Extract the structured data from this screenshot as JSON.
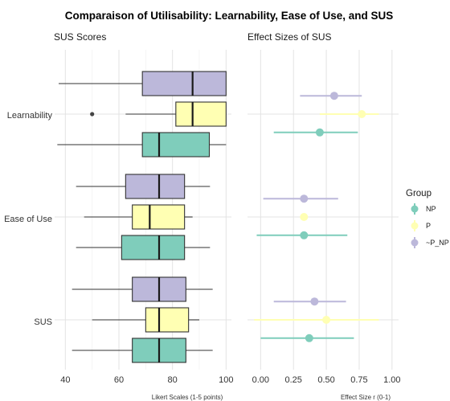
{
  "title": "Comparaison of Utilisability: Learnability, Ease of Use, and SUS",
  "colors": {
    "NP": "#7fcdbb",
    "P": "#ffffb3",
    "~P_NP": "#bcb8da",
    "grid": "#e3e3e3",
    "whisker": "#333333"
  },
  "chart_data": [
    {
      "type": "box",
      "title": "SUS Scores",
      "xlabel": "Likert Scales (1-5 points)",
      "xlim": [
        36,
        102
      ],
      "xticks": [
        40,
        60,
        80,
        100
      ],
      "categories": [
        "Learnability",
        "Ease of Use",
        "SUS"
      ],
      "series": [
        {
          "name": "NP",
          "boxes": [
            {
              "min": 37,
              "q1": 68.75,
              "median": 75,
              "q3": 93.75,
              "max": 100,
              "outliers": []
            },
            {
              "min": 44,
              "q1": 61,
              "median": 75,
              "q3": 84.5,
              "max": 94,
              "outliers": []
            },
            {
              "min": 42.5,
              "q1": 65,
              "median": 75,
              "q3": 85,
              "max": 95,
              "outliers": []
            }
          ]
        },
        {
          "name": "P",
          "boxes": [
            {
              "min": 62.5,
              "q1": 81.25,
              "median": 87.5,
              "q3": 100,
              "max": 100,
              "outliers": [
                50
              ]
            },
            {
              "min": 47,
              "q1": 65,
              "median": 71.5,
              "q3": 84.5,
              "max": 87.5,
              "outliers": []
            },
            {
              "min": 50,
              "q1": 70,
              "median": 75,
              "q3": 86,
              "max": 90,
              "outliers": []
            }
          ]
        },
        {
          "name": "~P_NP",
          "boxes": [
            {
              "min": 37.5,
              "q1": 68.75,
              "median": 87.5,
              "q3": 100,
              "max": 100,
              "outliers": []
            },
            {
              "min": 44,
              "q1": 62.5,
              "median": 75,
              "q3": 84.5,
              "max": 94,
              "outliers": []
            },
            {
              "min": 42.5,
              "q1": 65,
              "median": 75,
              "q3": 85,
              "max": 95,
              "outliers": []
            }
          ]
        }
      ]
    },
    {
      "type": "pointrange",
      "title": "Effect Sizes of SUS",
      "xlabel": "Effect Size r (0-1)",
      "xlim": [
        -0.1,
        1.05
      ],
      "xticks": [
        0,
        0.25,
        0.5,
        0.75,
        1
      ],
      "xticklabels": [
        "0.00",
        "0.25",
        "0.50",
        "0.75",
        "1.00"
      ],
      "categories": [
        "Learnability",
        "Ease of Use",
        "SUS"
      ],
      "series": [
        {
          "name": "NP",
          "points": [
            {
              "r": 0.45,
              "low": 0.1,
              "high": 0.74
            },
            {
              "r": 0.33,
              "low": -0.03,
              "high": 0.66
            },
            {
              "r": 0.37,
              "low": 0.0,
              "high": 0.71
            }
          ]
        },
        {
          "name": "P",
          "points": [
            {
              "r": 0.77,
              "low": 0.45,
              "high": 0.9
            },
            {
              "r": 0.33,
              "low": 0.31,
              "high": 0.35
            },
            {
              "r": 0.5,
              "low": -0.05,
              "high": 0.9
            }
          ]
        },
        {
          "name": "~P_NP",
          "points": [
            {
              "r": 0.56,
              "low": 0.3,
              "high": 0.77
            },
            {
              "r": 0.33,
              "low": 0.02,
              "high": 0.59
            },
            {
              "r": 0.41,
              "low": 0.1,
              "high": 0.65
            }
          ]
        }
      ]
    }
  ],
  "legend": {
    "title": "Group",
    "position": "right",
    "items": [
      "NP",
      "P",
      "~P_NP"
    ]
  }
}
